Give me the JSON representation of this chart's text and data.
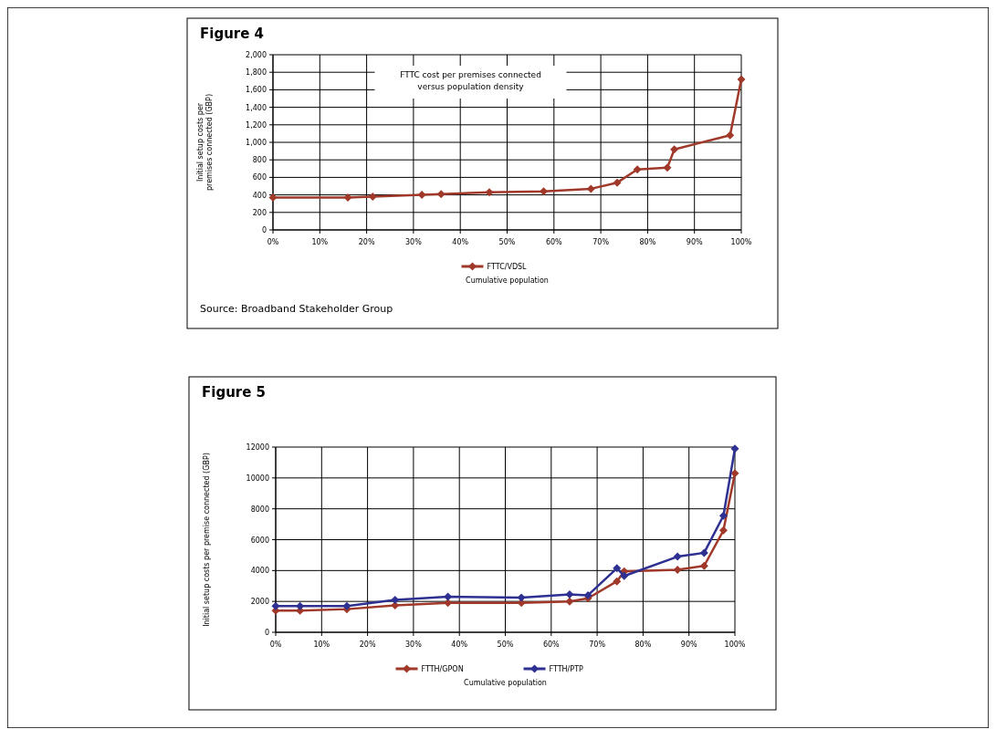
{
  "chart_data": [
    {
      "type": "line",
      "title": "Figure 4",
      "subtitle": "FTTC cost per premises connected versus population density",
      "xlabel": "Cumulative population",
      "ylabel": "Initial setup costs per premises connected (GBP)",
      "annotations": [
        "Source: Broadband Stakeholder Group"
      ],
      "series": [
        {
          "name": "FTTC/VDSL",
          "color": "#a0392a",
          "x": [
            0,
            16,
            21.3,
            31.8,
            35.9,
            46.2,
            57.8,
            67.9,
            73.5,
            77.8,
            84.2,
            85.7,
            97.6,
            100
          ],
          "values": [
            370,
            370,
            380,
            400,
            410,
            430,
            440,
            470,
            540,
            690,
            710,
            920,
            1080,
            1720
          ]
        }
      ],
      "xlim": [
        0,
        100
      ],
      "xticks": [
        {
          "value": 0,
          "label": "0%"
        },
        {
          "value": 10,
          "label": "10%"
        },
        {
          "value": 20,
          "label": "20%"
        },
        {
          "value": 30,
          "label": "30%"
        },
        {
          "value": 40,
          "label": "40%"
        },
        {
          "value": 50,
          "label": "50%"
        },
        {
          "value": 60,
          "label": "60%"
        },
        {
          "value": 70,
          "label": "70%"
        },
        {
          "value": 80,
          "label": "80%"
        },
        {
          "value": 90,
          "label": "90%"
        },
        {
          "value": 100,
          "label": "100%"
        }
      ],
      "ylim": [
        0,
        2000
      ],
      "yticks": [
        0,
        200,
        400,
        600,
        800,
        {
          "value": 1000,
          "label": "1,000"
        },
        {
          "value": 1200,
          "label": "1,200"
        },
        {
          "value": 1400,
          "label": "1,400"
        },
        {
          "value": 1600,
          "label": "1,600"
        },
        {
          "value": 1800,
          "label": "1,800"
        },
        {
          "value": 2000,
          "label": "2,000"
        }
      ],
      "grid": true,
      "legend": "bottom",
      "marker": "diamond",
      "line_style": "solid"
    },
    {
      "type": "line",
      "title": "Figure 5",
      "xlabel": "Cumulative population",
      "ylabel": "Initial setup costs per premise connected (GBP)",
      "series": [
        {
          "name": "FTTH/GPON",
          "color": "#a0392a",
          "x": [
            0,
            5.3,
            15.5,
            26,
            37.5,
            53.5,
            64,
            68,
            74.3,
            75.9,
            87.5,
            93.3,
            97.5,
            100
          ],
          "values": [
            1400,
            1400,
            1500,
            1750,
            1900,
            1900,
            2000,
            2200,
            3300,
            3950,
            4050,
            4300,
            6600,
            10300
          ]
        },
        {
          "name": "FTTH/PTP",
          "color": "#2e3192",
          "x": [
            0,
            5.3,
            15.5,
            26,
            37.5,
            53.5,
            64,
            68,
            74.3,
            75.9,
            87.5,
            93.3,
            97.5,
            100
          ],
          "values": [
            1700,
            1700,
            1700,
            2100,
            2300,
            2250,
            2450,
            2400,
            4150,
            3650,
            4900,
            5150,
            7550,
            11900
          ]
        }
      ],
      "xlim": [
        0,
        100
      ],
      "xticks": [
        {
          "value": 0,
          "label": "0%"
        },
        {
          "value": 10,
          "label": "10%"
        },
        {
          "value": 20,
          "label": "20%"
        },
        {
          "value": 30,
          "label": "30%"
        },
        {
          "value": 40,
          "label": "40%"
        },
        {
          "value": 50,
          "label": "50%"
        },
        {
          "value": 60,
          "label": "60%"
        },
        {
          "value": 70,
          "label": "70%"
        },
        {
          "value": 80,
          "label": "80%"
        },
        {
          "value": 90,
          "label": "90%"
        },
        {
          "value": 100,
          "label": "100%"
        }
      ],
      "ylim": [
        0,
        12000
      ],
      "yticks": [
        0,
        2000,
        4000,
        6000,
        8000,
        10000,
        12000
      ],
      "grid": true,
      "legend": "bottom",
      "marker": "diamond",
      "line_style": "solid"
    }
  ]
}
